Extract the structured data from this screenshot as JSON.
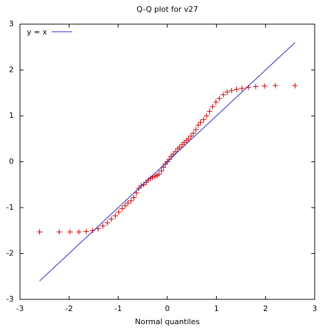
{
  "chart_data": {
    "type": "scatter",
    "title": "Q-Q plot for v27",
    "xlabel": "Normal quantiles",
    "xlim": [
      -3,
      3
    ],
    "ylim": [
      -3,
      3
    ],
    "xticks": [
      -3,
      -2,
      -1,
      0,
      1,
      2,
      3
    ],
    "yticks": [
      -3,
      -2,
      -1,
      0,
      1,
      2,
      3
    ],
    "legend": "upper left",
    "series": [
      {
        "color": "#cc0000",
        "marker": "+",
        "x": [
          -2.6,
          -2.2,
          -1.98,
          -1.8,
          -1.65,
          -1.52,
          -1.41,
          -1.31,
          -1.22,
          -1.14,
          -1.06,
          -0.99,
          -0.92,
          -0.86,
          -0.8,
          -0.74,
          -0.68,
          -0.63,
          -0.58,
          -0.53,
          -0.48,
          -0.43,
          -0.39,
          -0.34,
          -0.3,
          -0.25,
          -0.21,
          -0.17,
          -0.12,
          -0.08,
          -0.04,
          0,
          0.04,
          0.08,
          0.12,
          0.17,
          0.21,
          0.25,
          0.3,
          0.34,
          0.39,
          0.43,
          0.48,
          0.53,
          0.58,
          0.63,
          0.68,
          0.74,
          0.8,
          0.86,
          0.92,
          0.99,
          1.06,
          1.14,
          1.22,
          1.31,
          1.41,
          1.52,
          1.65,
          1.8,
          1.98,
          2.2,
          2.6
        ],
        "values": [
          -1.53,
          -1.53,
          -1.53,
          -1.53,
          -1.52,
          -1.5,
          -1.46,
          -1.4,
          -1.33,
          -1.25,
          -1.18,
          -1.1,
          -1.02,
          -0.96,
          -0.9,
          -0.85,
          -0.78,
          -0.68,
          -0.58,
          -0.52,
          -0.5,
          -0.45,
          -0.4,
          -0.36,
          -0.34,
          -0.32,
          -0.3,
          -0.27,
          -0.2,
          -0.12,
          -0.05,
          0,
          0.05,
          0.12,
          0.17,
          0.22,
          0.28,
          0.32,
          0.37,
          0.42,
          0.46,
          0.5,
          0.56,
          0.62,
          0.7,
          0.8,
          0.86,
          0.92,
          1.0,
          1.1,
          1.2,
          1.3,
          1.38,
          1.46,
          1.52,
          1.55,
          1.58,
          1.6,
          1.62,
          1.64,
          1.65,
          1.66,
          1.66
        ]
      },
      {
        "name": "y = x",
        "color": "#2222cc",
        "mode": "line",
        "x": [
          -2.6,
          2.6
        ],
        "values": [
          -2.6,
          2.6
        ]
      }
    ]
  }
}
